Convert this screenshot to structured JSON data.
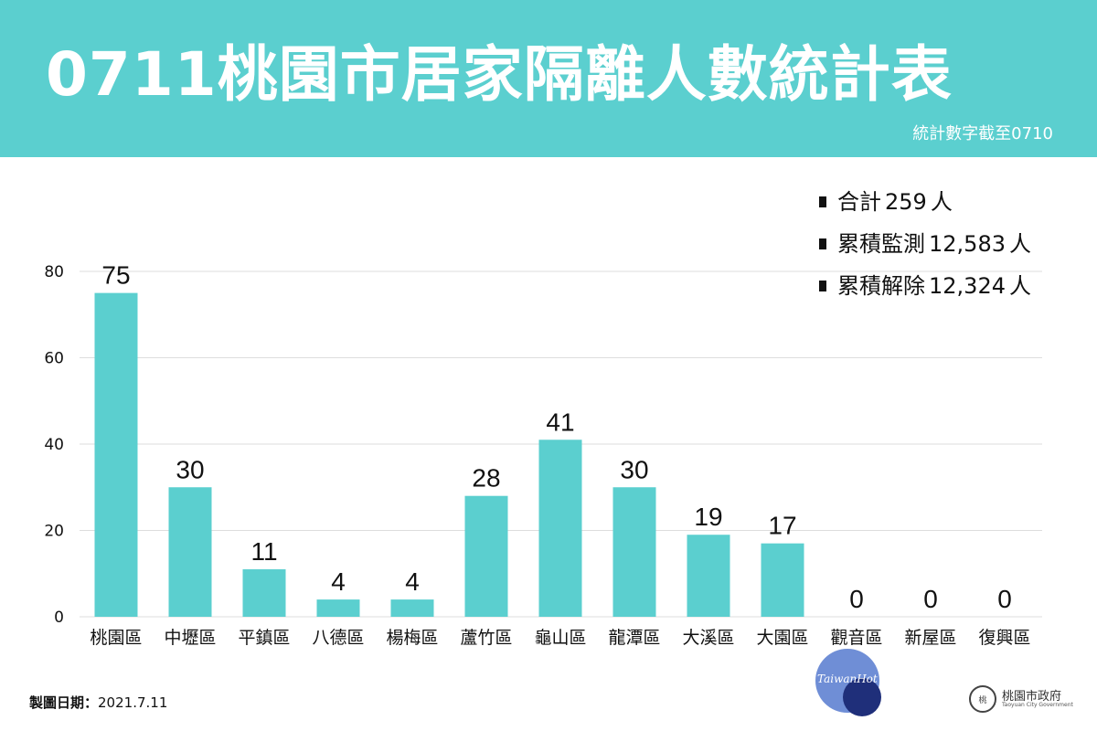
{
  "header": {
    "title": "0711桃園市居家隔離人數統計表",
    "subtitle": "統計數字截至0710",
    "background_color": "#5bcfcf"
  },
  "stats": [
    {
      "label": "合計",
      "value": "259",
      "unit": "人"
    },
    {
      "label": "累積監測",
      "value": "12,583",
      "unit": "人"
    },
    {
      "label": "累積解除",
      "value": "12,324",
      "unit": "人"
    }
  ],
  "chart_data": {
    "type": "bar",
    "title": "0711桃園市居家隔離人數統計表",
    "xlabel": "",
    "ylabel": "",
    "categories": [
      "桃園區",
      "中壢區",
      "平鎮區",
      "八德區",
      "楊梅區",
      "蘆竹區",
      "龜山區",
      "龍潭區",
      "大溪區",
      "大園區",
      "觀音區",
      "新屋區",
      "復興區"
    ],
    "values": [
      75,
      30,
      11,
      4,
      4,
      28,
      41,
      30,
      19,
      17,
      0,
      0,
      0
    ],
    "ylim": [
      0,
      80
    ],
    "yticks": [
      0,
      20,
      40,
      60,
      80
    ],
    "grid": true,
    "bar_color": "#5bcfcf",
    "show_value_labels": true
  },
  "footer": {
    "date_label": "製圖日期：",
    "date_value": "2021.7.11",
    "watermark": "TaiwanHot",
    "gov_name": "桃園市政府",
    "gov_name_en": "Taoyuan City Government"
  }
}
